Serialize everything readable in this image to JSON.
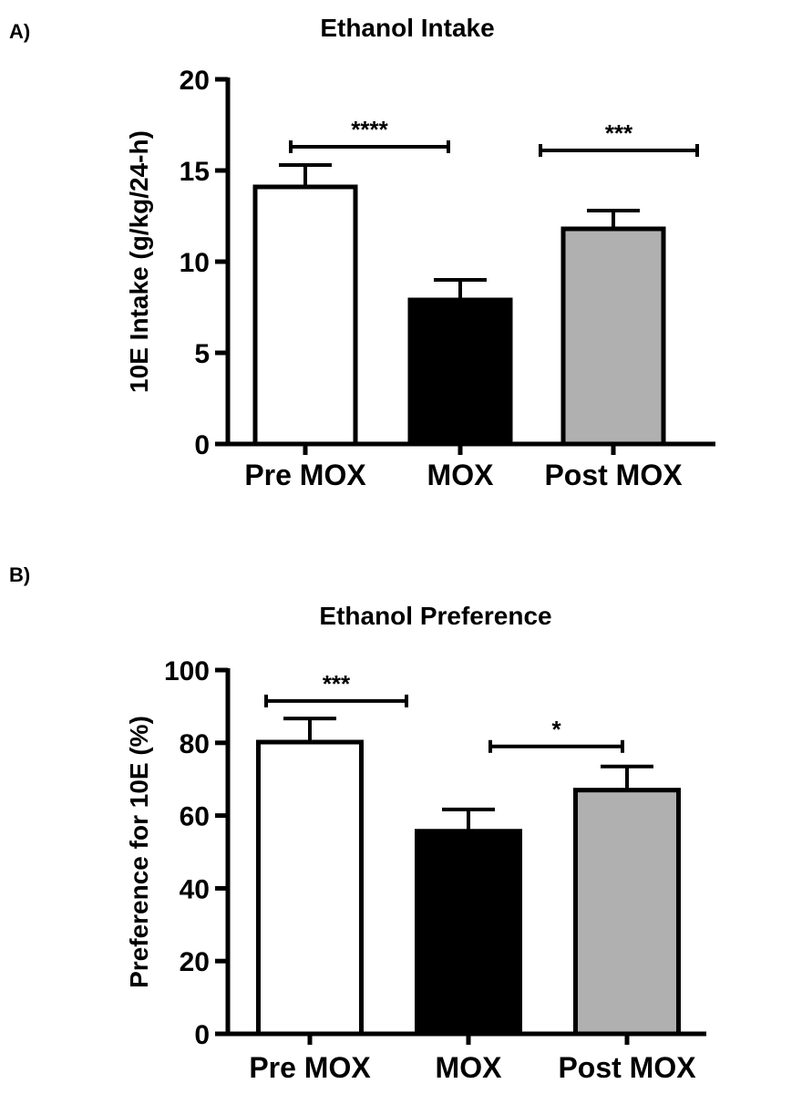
{
  "panels": [
    {
      "label": "A)"
    },
    {
      "label": "B)"
    }
  ],
  "chart_data": [
    {
      "type": "bar",
      "title": "Ethanol Intake",
      "xlabel": "",
      "ylabel": "10E Intake (g/kg/24-h)",
      "categories": [
        "Pre MOX",
        "MOX",
        "Post MOX"
      ],
      "values": [
        14.1,
        7.9,
        11.8
      ],
      "errors": [
        1.2,
        1.1,
        1.0
      ],
      "colors": [
        "#ffffff",
        "#000000",
        "#b0b0b0"
      ],
      "ylim": [
        0,
        20
      ],
      "yticks": [
        0,
        5,
        10,
        15,
        20
      ],
      "significance": [
        {
          "from": 0,
          "to": 1,
          "label": "****",
          "y": 16.3
        },
        {
          "from": 2,
          "to": 3,
          "label": "***",
          "y": 16.1
        }
      ]
    },
    {
      "type": "bar",
      "title": "Ethanol Preference",
      "xlabel": "",
      "ylabel": "Preference for 10E (%)",
      "categories": [
        "Pre MOX",
        "MOX",
        "Post MOX"
      ],
      "values": [
        80.2,
        55.7,
        67.0
      ],
      "errors": [
        6.5,
        6.0,
        6.5
      ],
      "colors": [
        "#ffffff",
        "#000000",
        "#b0b0b0"
      ],
      "ylim": [
        0,
        100
      ],
      "yticks": [
        0,
        20,
        40,
        60,
        80,
        100
      ],
      "significance": [
        {
          "from": 0,
          "to": 1,
          "label": "***",
          "y": 91.5
        },
        {
          "from": 2,
          "to": 3,
          "label": "*",
          "y": 79
        }
      ]
    }
  ]
}
